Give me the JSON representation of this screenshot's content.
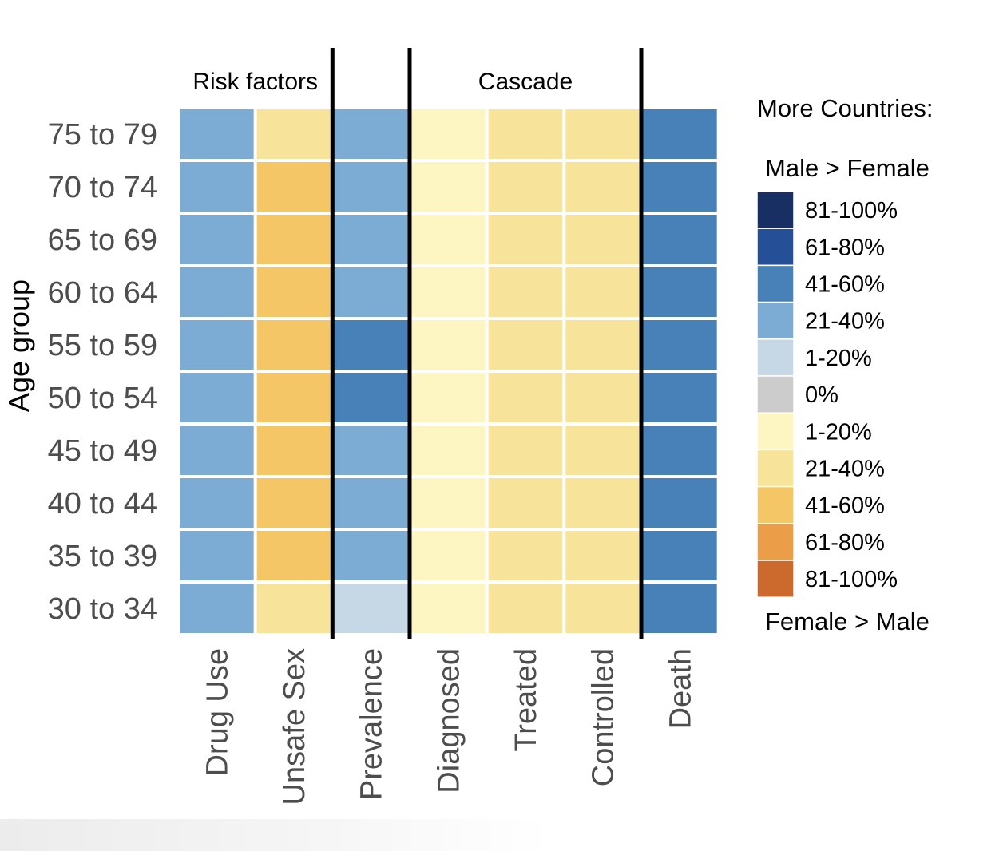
{
  "chart_data": {
    "type": "heatmap",
    "ylabel": "Age group",
    "rows": [
      "75 to 79",
      "70 to 74",
      "65 to 69",
      "60 to 64",
      "55 to 59",
      "50 to 54",
      "45 to 49",
      "40 to 44",
      "35 to 39",
      "30 to 34"
    ],
    "columns": [
      "Drug Use",
      "Unsafe Sex",
      "Prevalence",
      "Diagnosed",
      "Treated",
      "Controlled",
      "Death"
    ],
    "column_groups": [
      {
        "label": "Risk factors",
        "columns": [
          "Drug Use",
          "Unsafe Sex"
        ]
      },
      {
        "label": "",
        "columns": [
          "Prevalence"
        ]
      },
      {
        "label": "Cascade",
        "columns": [
          "Diagnosed",
          "Treated",
          "Controlled"
        ]
      },
      {
        "label": "",
        "columns": [
          "Death"
        ]
      }
    ],
    "values": [
      [
        "M 21-40%",
        "F 21-40%",
        "M 21-40%",
        "F 1-20%",
        "F 21-40%",
        "F 21-40%",
        "M 41-60%"
      ],
      [
        "M 21-40%",
        "F 41-60%",
        "M 21-40%",
        "F 1-20%",
        "F 21-40%",
        "F 21-40%",
        "M 41-60%"
      ],
      [
        "M 21-40%",
        "F 41-60%",
        "M 21-40%",
        "F 1-20%",
        "F 21-40%",
        "F 21-40%",
        "M 41-60%"
      ],
      [
        "M 21-40%",
        "F 41-60%",
        "M 21-40%",
        "F 1-20%",
        "F 21-40%",
        "F 21-40%",
        "M 41-60%"
      ],
      [
        "M 21-40%",
        "F 41-60%",
        "M 41-60%",
        "F 1-20%",
        "F 21-40%",
        "F 21-40%",
        "M 41-60%"
      ],
      [
        "M 21-40%",
        "F 41-60%",
        "M 41-60%",
        "F 1-20%",
        "F 21-40%",
        "F 21-40%",
        "M 41-60%"
      ],
      [
        "M 21-40%",
        "F 41-60%",
        "M 21-40%",
        "F 1-20%",
        "F 21-40%",
        "F 21-40%",
        "M 41-60%"
      ],
      [
        "M 21-40%",
        "F 41-60%",
        "M 21-40%",
        "F 1-20%",
        "F 21-40%",
        "F 21-40%",
        "M 41-60%"
      ],
      [
        "M 21-40%",
        "F 41-60%",
        "M 21-40%",
        "F 1-20%",
        "F 21-40%",
        "F 21-40%",
        "M 41-60%"
      ],
      [
        "M 21-40%",
        "F 21-40%",
        "M 1-20%",
        "F 1-20%",
        "F 21-40%",
        "F 21-40%",
        "M 41-60%"
      ]
    ],
    "legend": {
      "title": "More Countries:",
      "top_label": "Male > Female",
      "bottom_label": "Female > Male",
      "placement": "right",
      "items": [
        {
          "key": "M 81-100%",
          "label": "81-100%",
          "color": "#172f63"
        },
        {
          "key": "M 61-80%",
          "label": "61-80%",
          "color": "#254f96"
        },
        {
          "key": "M 41-60%",
          "label": "41-60%",
          "color": "#4880b8"
        },
        {
          "key": "M 21-40%",
          "label": "21-40%",
          "color": "#7cabd3"
        },
        {
          "key": "M 1-20%",
          "label": "1-20%",
          "color": "#c6d7e6"
        },
        {
          "key": "0%",
          "label": "0%",
          "color": "#cccccc"
        },
        {
          "key": "F 1-20%",
          "label": "1-20%",
          "color": "#fdf5c2"
        },
        {
          "key": "F 21-40%",
          "label": "21-40%",
          "color": "#f7e39a"
        },
        {
          "key": "F 41-60%",
          "label": "41-60%",
          "color": "#f5c665"
        },
        {
          "key": "F 61-80%",
          "label": "61-80%",
          "color": "#eb9d48"
        },
        {
          "key": "F 81-100%",
          "label": "81-100%",
          "color": "#cc6a2e"
        }
      ]
    }
  }
}
